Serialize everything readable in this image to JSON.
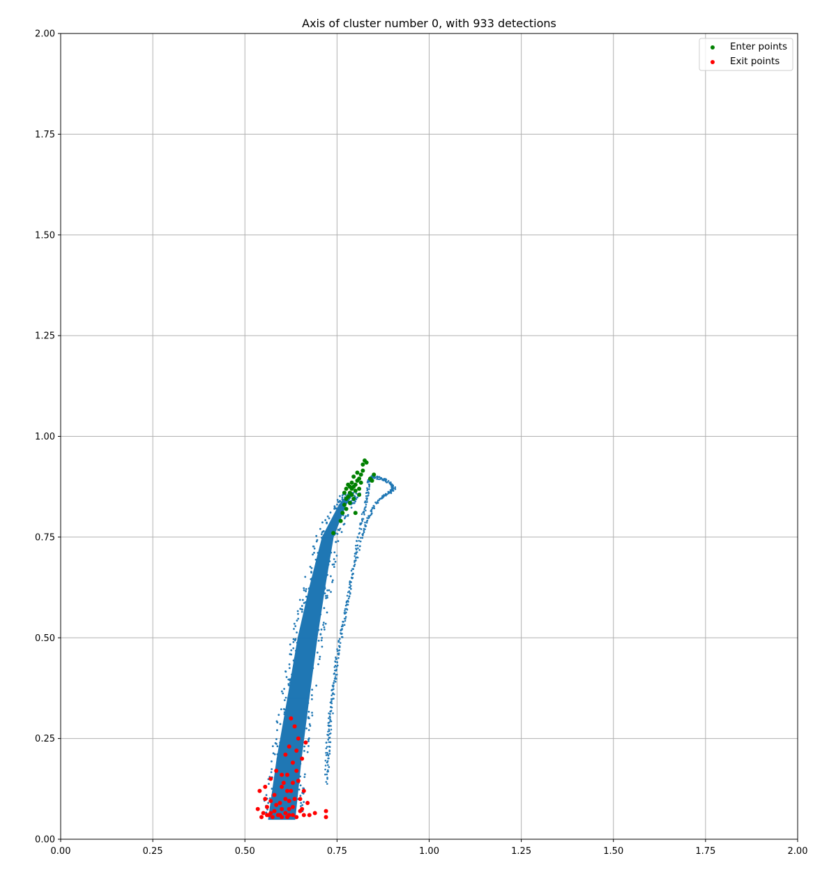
{
  "chart_data": {
    "type": "scatter",
    "title": "Axis of cluster number 0, with 933 detections",
    "xlabel": "",
    "ylabel": "",
    "xlim": [
      0.0,
      2.0
    ],
    "ylim": [
      0.0,
      2.0
    ],
    "x_ticks": [
      "0.00",
      "0.25",
      "0.50",
      "0.75",
      "1.00",
      "1.25",
      "1.50",
      "1.75",
      "2.00"
    ],
    "y_ticks": [
      "0.00",
      "0.25",
      "0.50",
      "0.75",
      "1.00",
      "1.25",
      "1.50",
      "1.75",
      "2.00"
    ],
    "grid": true,
    "legend_position": "top-right",
    "colors": {
      "trajectory": "#1f77b4",
      "enter": "#008000",
      "exit": "#ff0000",
      "grid": "#b0b0b0"
    },
    "series": [
      {
        "role": "trajectory",
        "shape": "band",
        "centerline": [
          [
            0.6,
            0.05
          ],
          [
            0.62,
            0.2
          ],
          [
            0.645,
            0.35
          ],
          [
            0.67,
            0.5
          ],
          [
            0.695,
            0.62
          ],
          [
            0.725,
            0.75
          ],
          [
            0.765,
            0.83
          ],
          [
            0.79,
            0.86
          ]
        ],
        "half_width": [
          0.035,
          0.032,
          0.028,
          0.025,
          0.02,
          0.014,
          0.008,
          0.005
        ],
        "color": "#1f77b4"
      },
      {
        "role": "trajectory",
        "shape": "loop",
        "points": [
          [
            0.72,
            0.14
          ],
          [
            0.725,
            0.25
          ],
          [
            0.735,
            0.35
          ],
          [
            0.75,
            0.45
          ],
          [
            0.77,
            0.55
          ],
          [
            0.79,
            0.65
          ],
          [
            0.815,
            0.75
          ],
          [
            0.835,
            0.8
          ],
          [
            0.86,
            0.84
          ],
          [
            0.89,
            0.86
          ],
          [
            0.905,
            0.87
          ],
          [
            0.895,
            0.885
          ],
          [
            0.87,
            0.895
          ],
          [
            0.845,
            0.9
          ],
          [
            0.835,
            0.885
          ],
          [
            0.83,
            0.84
          ],
          [
            0.815,
            0.78
          ],
          [
            0.795,
            0.68
          ],
          [
            0.775,
            0.57
          ],
          [
            0.755,
            0.47
          ],
          [
            0.74,
            0.37
          ],
          [
            0.73,
            0.26
          ],
          [
            0.725,
            0.16
          ]
        ],
        "color": "#1f77b4"
      },
      {
        "name": "Enter points",
        "color": "#008000",
        "points": [
          [
            0.74,
            0.76
          ],
          [
            0.76,
            0.79
          ],
          [
            0.765,
            0.81
          ],
          [
            0.77,
            0.83
          ],
          [
            0.775,
            0.845
          ],
          [
            0.78,
            0.85
          ],
          [
            0.785,
            0.86
          ],
          [
            0.79,
            0.87
          ],
          [
            0.79,
            0.855
          ],
          [
            0.795,
            0.875
          ],
          [
            0.8,
            0.88
          ],
          [
            0.8,
            0.865
          ],
          [
            0.805,
            0.89
          ],
          [
            0.81,
            0.895
          ],
          [
            0.81,
            0.87
          ],
          [
            0.815,
            0.905
          ],
          [
            0.815,
            0.885
          ],
          [
            0.82,
            0.915
          ],
          [
            0.82,
            0.93
          ],
          [
            0.825,
            0.94
          ],
          [
            0.83,
            0.935
          ],
          [
            0.785,
            0.835
          ],
          [
            0.795,
            0.845
          ],
          [
            0.8,
            0.81
          ],
          [
            0.84,
            0.895
          ],
          [
            0.845,
            0.89
          ],
          [
            0.85,
            0.905
          ],
          [
            0.81,
            0.855
          ],
          [
            0.775,
            0.87
          ],
          [
            0.78,
            0.88
          ],
          [
            0.79,
            0.885
          ],
          [
            0.785,
            0.875
          ],
          [
            0.795,
            0.9
          ],
          [
            0.805,
            0.91
          ],
          [
            0.77,
            0.86
          ],
          [
            0.775,
            0.82
          ]
        ]
      },
      {
        "name": "Exit points",
        "color": "#ff0000",
        "points": [
          [
            0.535,
            0.075
          ],
          [
            0.54,
            0.12
          ],
          [
            0.545,
            0.055
          ],
          [
            0.55,
            0.065
          ],
          [
            0.555,
            0.13
          ],
          [
            0.56,
            0.08
          ],
          [
            0.565,
            0.06
          ],
          [
            0.57,
            0.15
          ],
          [
            0.575,
            0.055
          ],
          [
            0.58,
            0.07
          ],
          [
            0.585,
            0.17
          ],
          [
            0.59,
            0.06
          ],
          [
            0.595,
            0.09
          ],
          [
            0.6,
            0.055
          ],
          [
            0.605,
            0.14
          ],
          [
            0.61,
            0.065
          ],
          [
            0.61,
            0.21
          ],
          [
            0.615,
            0.16
          ],
          [
            0.615,
            0.055
          ],
          [
            0.62,
            0.23
          ],
          [
            0.62,
            0.075
          ],
          [
            0.625,
            0.3
          ],
          [
            0.625,
            0.12
          ],
          [
            0.63,
            0.06
          ],
          [
            0.63,
            0.19
          ],
          [
            0.635,
            0.28
          ],
          [
            0.635,
            0.1
          ],
          [
            0.64,
            0.055
          ],
          [
            0.64,
            0.22
          ],
          [
            0.645,
            0.145
          ],
          [
            0.645,
            0.25
          ],
          [
            0.65,
            0.07
          ],
          [
            0.655,
            0.2
          ],
          [
            0.66,
            0.12
          ],
          [
            0.66,
            0.06
          ],
          [
            0.665,
            0.24
          ],
          [
            0.67,
            0.09
          ],
          [
            0.675,
            0.06
          ],
          [
            0.69,
            0.065
          ],
          [
            0.72,
            0.055
          ],
          [
            0.72,
            0.07
          ],
          [
            0.58,
            0.11
          ],
          [
            0.6,
            0.13
          ],
          [
            0.62,
            0.095
          ],
          [
            0.6,
            0.075
          ],
          [
            0.585,
            0.085
          ],
          [
            0.63,
            0.14
          ],
          [
            0.57,
            0.095
          ],
          [
            0.555,
            0.1
          ],
          [
            0.65,
            0.1
          ],
          [
            0.64,
            0.17
          ],
          [
            0.655,
            0.075
          ],
          [
            0.61,
            0.1
          ],
          [
            0.595,
            0.06
          ],
          [
            0.62,
            0.06
          ],
          [
            0.63,
            0.08
          ],
          [
            0.6,
            0.16
          ],
          [
            0.615,
            0.12
          ],
          [
            0.56,
            0.06
          ],
          [
            0.57,
            0.065
          ]
        ]
      }
    ]
  }
}
